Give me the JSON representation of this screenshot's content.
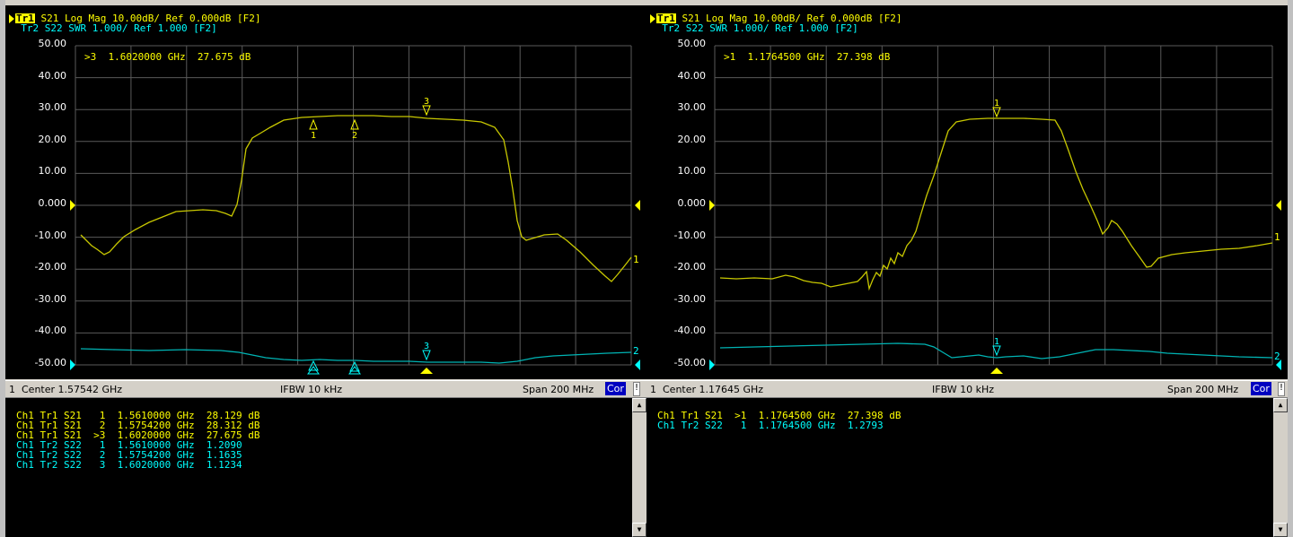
{
  "panels": [
    {
      "header_line1": {
        "box": "Tr1",
        "text": " S21 Log Mag 10.00dB/ Ref 0.000dB [F2]"
      },
      "header_line2": "Tr2 S22 SWR 1.000/ Ref 1.000 [F2]",
      "y_axis_labels": [
        "50.00",
        "40.00",
        "30.00",
        "20.00",
        "10.00",
        "0.000",
        "-10.00",
        "-20.00",
        "-30.00",
        "-40.00",
        "-50.00"
      ],
      "active_marker_readout": ">3  1.6020000 GHz  27.675 dB",
      "marker_labels": [
        "1",
        "2",
        "3"
      ],
      "trace_end_labels": [
        "1",
        "2"
      ],
      "status": {
        "channel": "1",
        "center": "Center 1.57542 GHz",
        "ifbw": "IFBW 10 kHz",
        "span": "Span 200 MHz",
        "cor": "Cor",
        "bang": "!"
      },
      "table_rows": [
        {
          "text": "Ch1 Tr1 S21   1  1.5610000 GHz  28.129 dB",
          "color": "#ffff00"
        },
        {
          "text": "Ch1 Tr1 S21   2  1.5754200 GHz  28.312 dB",
          "color": "#ffff00"
        },
        {
          "text": "Ch1 Tr1 S21  >3  1.6020000 GHz  27.675 dB",
          "color": "#ffff00"
        },
        {
          "text": "Ch1 Tr2 S22   1  1.5610000 GHz  1.2090",
          "color": "#00ffff"
        },
        {
          "text": "Ch1 Tr2 S22   2  1.5754200 GHz  1.1635",
          "color": "#00ffff"
        },
        {
          "text": "Ch1 Tr2 S22   3  1.6020000 GHz  1.1234",
          "color": "#00ffff"
        }
      ]
    },
    {
      "header_line1": {
        "box": "Tr1",
        "text": " S21 Log Mag 10.00dB/ Ref 0.000dB [F2]"
      },
      "header_line2": "Tr2 S22 SWR 1.000/ Ref 1.000 [F2]",
      "y_axis_labels": [
        "50.00",
        "40.00",
        "30.00",
        "20.00",
        "10.00",
        "0.000",
        "-10.00",
        "-20.00",
        "-30.00",
        "-40.00",
        "-50.00"
      ],
      "active_marker_readout": ">1  1.1764500 GHz  27.398 dB",
      "marker_labels": [
        "1"
      ],
      "trace_end_labels": [
        "1",
        "2"
      ],
      "status": {
        "channel": "1",
        "center": "Center 1.17645 GHz",
        "ifbw": "IFBW 10 kHz",
        "span": "Span 200 MHz",
        "cor": "Cor",
        "bang": "!"
      },
      "table_rows": [
        {
          "text": "Ch1 Tr1 S21  >1  1.1764500 GHz  27.398 dB",
          "color": "#ffff00"
        },
        {
          "text": "Ch1 Tr2 S22   1  1.1764500 GHz  1.2793",
          "color": "#00ffff"
        }
      ]
    }
  ],
  "colors": {
    "trace1": "#c8c800",
    "trace2": "#00b4b4",
    "grid": "#5a5a5a",
    "background": "#000000"
  }
}
